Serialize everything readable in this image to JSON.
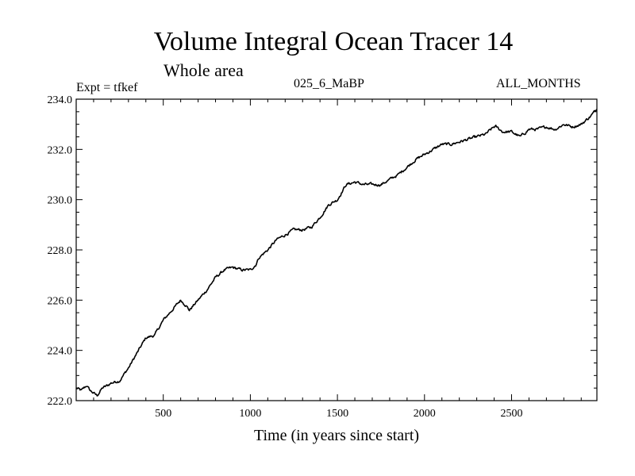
{
  "chart_data": {
    "type": "line",
    "title": "Volume Integral Ocean Tracer 14",
    "subtitle": "Whole area",
    "annotations": {
      "left": "Expt = tfkef",
      "center": "025_6_MaBP",
      "right": "ALL_MONTHS"
    },
    "xlabel": "Time (in years since start)",
    "ylabel": "",
    "xlim": [
      0,
      2990
    ],
    "ylim": [
      222.0,
      234.0
    ],
    "x_ticks": [
      500,
      1000,
      1500,
      2000,
      2500
    ],
    "x_tick_labels": [
      "500",
      "1000",
      "1500",
      "2000",
      "2500"
    ],
    "y_ticks": [
      222.0,
      224.0,
      226.0,
      228.0,
      230.0,
      232.0,
      234.0
    ],
    "y_tick_labels": [
      "222.0",
      "224.0",
      "226.0",
      "228.0",
      "230.0",
      "232.0",
      "234.0"
    ],
    "grid": false,
    "series": [
      {
        "color": "#000000",
        "x": [
          0,
          30,
          60,
          80,
          100,
          120,
          150,
          180,
          200,
          250,
          300,
          350,
          400,
          450,
          500,
          550,
          600,
          630,
          650,
          700,
          750,
          800,
          850,
          900,
          950,
          1000,
          1030,
          1050,
          1100,
          1150,
          1200,
          1250,
          1300,
          1350,
          1400,
          1450,
          1500,
          1550,
          1600,
          1650,
          1700,
          1750,
          1800,
          1850,
          1900,
          1950,
          2000,
          2050,
          2100,
          2150,
          2200,
          2250,
          2300,
          2350,
          2400,
          2410,
          2450,
          2500,
          2550,
          2600,
          2650,
          2700,
          2750,
          2800,
          2850,
          2900,
          2950,
          2990
        ],
        "y": [
          222.5,
          222.4,
          222.6,
          222.4,
          222.3,
          222.2,
          222.5,
          222.6,
          222.7,
          222.8,
          223.3,
          223.9,
          224.5,
          224.6,
          225.2,
          225.6,
          226.0,
          225.8,
          225.6,
          226.0,
          226.4,
          226.9,
          227.2,
          227.3,
          227.2,
          227.2,
          227.4,
          227.7,
          228.0,
          228.4,
          228.6,
          228.8,
          228.8,
          228.9,
          229.3,
          229.8,
          230.0,
          230.6,
          230.7,
          230.6,
          230.6,
          230.6,
          230.8,
          231.0,
          231.3,
          231.6,
          231.8,
          232.0,
          232.2,
          232.2,
          232.3,
          232.4,
          232.5,
          232.6,
          232.9,
          232.9,
          232.7,
          232.7,
          232.5,
          232.8,
          232.8,
          232.9,
          232.8,
          233.0,
          232.9,
          233.0,
          233.3,
          233.6
        ]
      }
    ]
  }
}
